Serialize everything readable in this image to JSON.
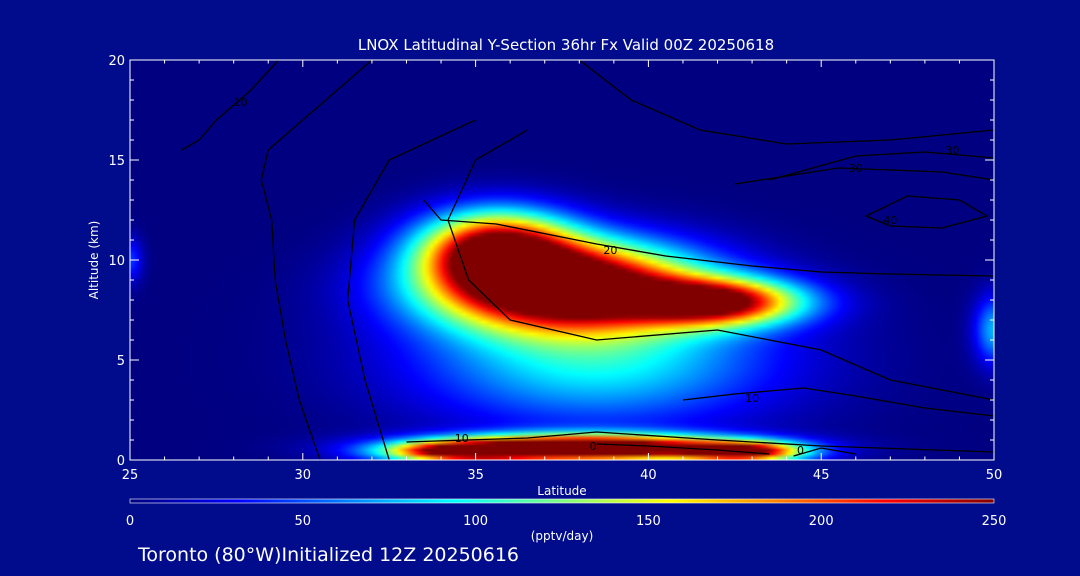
{
  "chart_data": {
    "type": "heatmap",
    "title": "LNOX Latitudinal Y-Section 36hr  Fx Valid 00Z 20250618",
    "xlabel": "Latitude",
    "ylabel": "Altitude (km)",
    "xlim": [
      25,
      50
    ],
    "ylim": [
      0,
      20
    ],
    "x_ticks": [
      "25",
      "30",
      "35",
      "40",
      "45",
      "50"
    ],
    "y_ticks": [
      "0",
      "5",
      "10",
      "15",
      "20"
    ],
    "colorbar": {
      "label": "(pptv/day)",
      "range": [
        0,
        250
      ],
      "ticks": [
        "0",
        "50",
        "100",
        "150",
        "200",
        "250"
      ],
      "colors": [
        "#000080",
        "#0000ff",
        "#0080ff",
        "#00ffff",
        "#80ff80",
        "#ffff00",
        "#ff8000",
        "#ff0000",
        "#800000"
      ]
    },
    "field_blobs": [
      {
        "name": "upper-core",
        "lat": 37.5,
        "alt": 8.7,
        "sigma_lat": 2.6,
        "sigma_alt": 1.5,
        "value": 320
      },
      {
        "name": "upper-tail",
        "lat": 42.0,
        "alt": 7.9,
        "sigma_lat": 1.7,
        "sigma_alt": 0.8,
        "value": 230
      },
      {
        "name": "upper-tip",
        "lat": 35.6,
        "alt": 10.6,
        "sigma_lat": 1.5,
        "sigma_alt": 1.3,
        "value": 230
      },
      {
        "name": "mid-layer",
        "lat": 38.5,
        "alt": 5.0,
        "sigma_lat": 3.6,
        "sigma_alt": 2.3,
        "value": 95
      },
      {
        "name": "surface-layer",
        "lat": 38.2,
        "alt": 0.6,
        "sigma_lat": 3.0,
        "sigma_alt": 0.45,
        "value": 330
      },
      {
        "name": "surface-west",
        "lat": 34.5,
        "alt": 0.4,
        "sigma_lat": 1.5,
        "sigma_alt": 0.35,
        "value": 190
      },
      {
        "name": "surface-east",
        "lat": 42.8,
        "alt": 0.4,
        "sigma_lat": 1.2,
        "sigma_alt": 0.35,
        "value": 210
      },
      {
        "name": "east-edge",
        "lat": 50.0,
        "alt": 6.5,
        "sigma_lat": 0.4,
        "sigma_alt": 1.2,
        "value": 75
      },
      {
        "name": "west-edge",
        "lat": 25.0,
        "alt": 10.0,
        "sigma_lat": 0.25,
        "sigma_alt": 0.8,
        "value": 45
      }
    ],
    "contour_levels": [
      10,
      20,
      30,
      40
    ],
    "contours": [
      {
        "level": "10",
        "points": [
          [
            29.3,
            20
          ],
          [
            28.5,
            18.5
          ],
          [
            27.5,
            17
          ],
          [
            27,
            16
          ],
          [
            26.5,
            15.5
          ]
        ],
        "label_at": [
          28.2,
          17.9
        ]
      },
      {
        "name": "c-west",
        "level": "",
        "points": [
          [
            32,
            20
          ],
          [
            29,
            15.5
          ],
          [
            28.8,
            14
          ],
          [
            29.1,
            12
          ],
          [
            29.2,
            9
          ],
          [
            29.5,
            6
          ],
          [
            29.9,
            3
          ],
          [
            30.5,
            0
          ]
        ]
      },
      {
        "name": "c-a",
        "level": "",
        "points": [
          [
            35,
            17
          ],
          [
            32.5,
            15
          ],
          [
            31.5,
            12
          ],
          [
            31.3,
            8
          ],
          [
            31.8,
            4
          ],
          [
            32.5,
            0
          ]
        ]
      },
      {
        "name": "c-b",
        "level": "",
        "points": [
          [
            36.5,
            16.5
          ],
          [
            35,
            15
          ],
          [
            34.2,
            12
          ],
          [
            34.8,
            9
          ],
          [
            36,
            7
          ],
          [
            38.5,
            6
          ],
          [
            42,
            6.5
          ],
          [
            45,
            5.5
          ],
          [
            47,
            4
          ],
          [
            50,
            3
          ]
        ]
      },
      {
        "level": "20",
        "points": [
          [
            33.5,
            13
          ],
          [
            34,
            12
          ],
          [
            35.6,
            11.8
          ],
          [
            38.5,
            10.8
          ],
          [
            40.5,
            10.2
          ],
          [
            43,
            9.7
          ],
          [
            45,
            9.4
          ],
          [
            47,
            9.3
          ],
          [
            50,
            9.2
          ]
        ],
        "label_at": [
          38.9,
          10.5
        ]
      },
      {
        "name": "c-upper",
        "level": "",
        "points": [
          [
            38,
            20
          ],
          [
            39.5,
            18
          ],
          [
            41.5,
            16.5
          ],
          [
            44,
            15.8
          ],
          [
            47,
            16
          ],
          [
            50,
            16.5
          ]
        ]
      },
      {
        "level": "30",
        "points": [
          [
            43.5,
            14
          ],
          [
            46,
            15.2
          ],
          [
            48,
            15.4
          ],
          [
            50,
            15.1
          ]
        ],
        "label_at": [
          48.8,
          15.5
        ]
      },
      {
        "level": "30",
        "points": [
          [
            42.5,
            13.8
          ],
          [
            45.5,
            14.6
          ],
          [
            48.5,
            14.4
          ],
          [
            50,
            14
          ]
        ],
        "label_at": [
          46,
          14.6
        ]
      },
      {
        "level": "40",
        "points": [
          [
            46.3,
            12.2
          ],
          [
            47.5,
            13.2
          ],
          [
            49,
            13
          ],
          [
            49.8,
            12.2
          ],
          [
            48.5,
            11.6
          ],
          [
            47,
            11.7
          ],
          [
            46.3,
            12.2
          ]
        ],
        "label_at": [
          47,
          12
        ]
      },
      {
        "level": "10",
        "points": [
          [
            33,
            0.9
          ],
          [
            36.5,
            1.1
          ],
          [
            38.5,
            1.4
          ],
          [
            42,
            1.0
          ],
          [
            45,
            0.7
          ],
          [
            50,
            0.4
          ]
        ],
        "label_at": [
          34.6,
          1.1
        ]
      },
      {
        "level": "10",
        "points": [
          [
            41,
            3.0
          ],
          [
            42.5,
            3.3
          ],
          [
            44.5,
            3.6
          ],
          [
            46,
            3.2
          ],
          [
            48,
            2.6
          ],
          [
            50,
            2.2
          ]
        ],
        "label_at": [
          43,
          3.1
        ]
      },
      {
        "level": "0",
        "points": [
          [
            38.5,
            0.8
          ],
          [
            40,
            0.7
          ],
          [
            42,
            0.5
          ],
          [
            43.5,
            0.3
          ]
        ],
        "label_at": [
          38.4,
          0.7
        ]
      },
      {
        "level": "0",
        "points": [
          [
            44.2,
            0.2
          ],
          [
            45,
            0.6
          ],
          [
            46,
            0.3
          ]
        ],
        "label_at": [
          44.4,
          0.5
        ]
      }
    ]
  },
  "footer": {
    "location": "Toronto (80°W)Initialized 12Z 20250616"
  }
}
